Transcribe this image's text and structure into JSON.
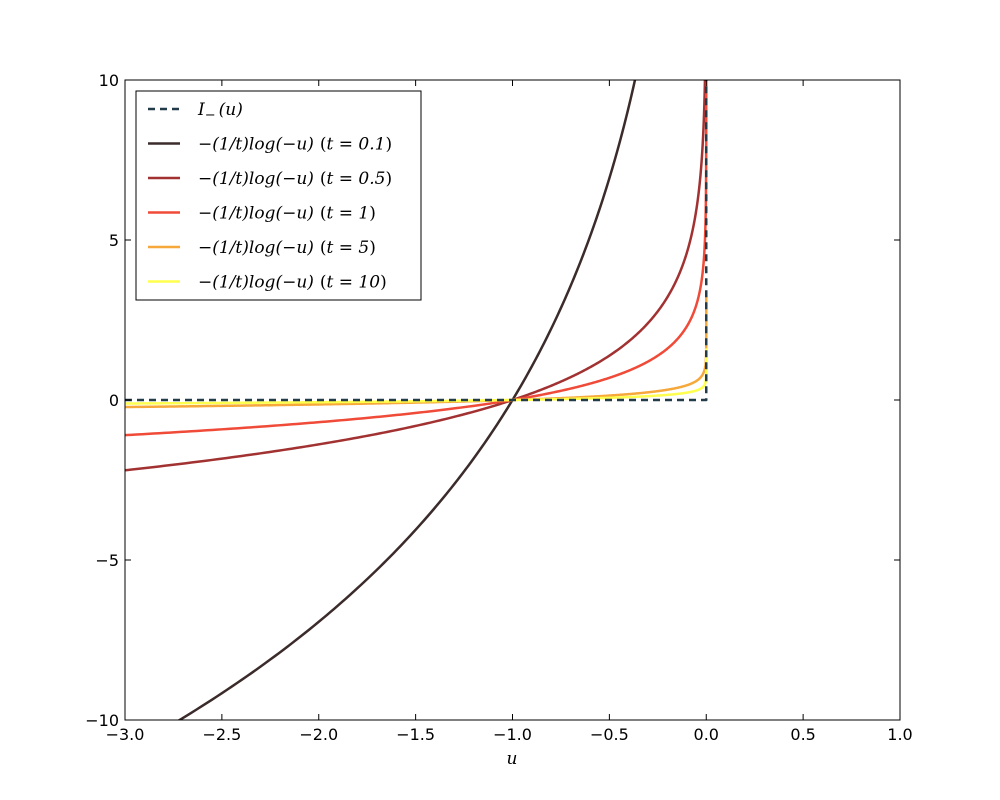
{
  "chart_data": {
    "type": "line",
    "xlabel": "u",
    "ylabel": "",
    "xlim": [
      -3.0,
      1.0
    ],
    "ylim": [
      -10,
      10
    ],
    "x_ticks": [
      -3.0,
      -2.5,
      -2.0,
      -1.5,
      -1.0,
      -0.5,
      0.0,
      0.5,
      1.0
    ],
    "x_tick_labels": [
      "−3.0",
      "−2.5",
      "−2.0",
      "−1.5",
      "−1.0",
      "−0.5",
      "0.0",
      "0.5",
      "1.0"
    ],
    "y_ticks": [
      -10,
      -5,
      0,
      5,
      10
    ],
    "y_tick_labels": [
      "−10",
      "−5",
      "0",
      "5",
      "10"
    ],
    "grid": false,
    "legend_position": "top-left",
    "series": [
      {
        "name": "I_−(u)",
        "style": "dashed",
        "color": "#223c4a",
        "kind": "indicator",
        "points": [
          [
            -3.0,
            0
          ],
          [
            0.0,
            0
          ],
          [
            0.0,
            10
          ]
        ]
      },
      {
        "name": "−(1/t)log(−u) (t = 0.1)",
        "style": "solid",
        "color": "#3b2b2b",
        "kind": "barrier",
        "t": 0.1
      },
      {
        "name": "−(1/t)log(−u) (t = 0.5)",
        "style": "solid",
        "color": "#a23232",
        "kind": "barrier",
        "t": 0.5
      },
      {
        "name": "−(1/t)log(−u) (t = 1)",
        "style": "solid",
        "color": "#f04a38",
        "kind": "barrier",
        "t": 1
      },
      {
        "name": "−(1/t)log(−u) (t = 5)",
        "style": "solid",
        "color": "#f6a83a",
        "kind": "barrier",
        "t": 5
      },
      {
        "name": "−(1/t)log(−u) (t = 10)",
        "style": "solid",
        "color": "#ffff4d",
        "kind": "barrier",
        "t": 10
      }
    ],
    "legend_entries": [
      {
        "func": "I",
        "sub": "−",
        "arg": "(u)"
      },
      {
        "func": "−(1/t)log(−u)",
        "t": "t = 0.1"
      },
      {
        "func": "−(1/t)log(−u)",
        "t": "t = 0.5"
      },
      {
        "func": "−(1/t)log(−u)",
        "t": "t = 1"
      },
      {
        "func": "−(1/t)log(−u)",
        "t": "t = 5"
      },
      {
        "func": "−(1/t)log(−u)",
        "t": "t = 10"
      }
    ]
  }
}
